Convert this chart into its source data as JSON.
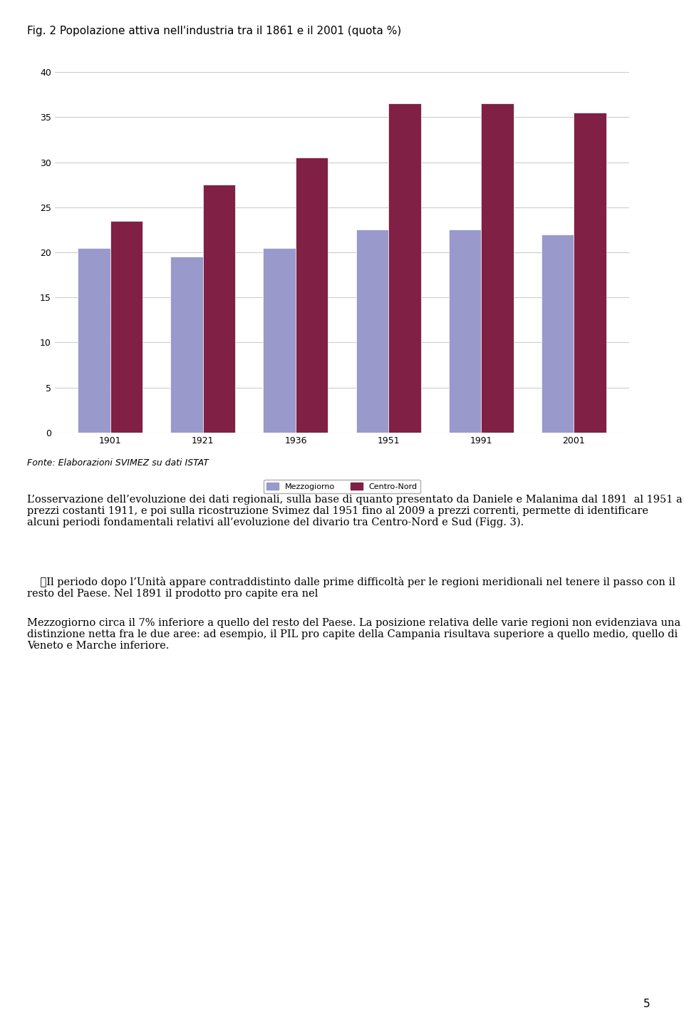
{
  "title": "Fig. 2 Popolazione attiva nell'industria tra il 1861 e il 2001 (quota %)",
  "years": [
    "1901",
    "1921",
    "1936",
    "1951",
    "1991",
    "2001"
  ],
  "mezzogiorno": [
    20.5,
    19.5,
    20.5,
    22.5,
    22.5,
    22.0
  ],
  "centro_nord": [
    23.5,
    27.5,
    30.5,
    36.5,
    36.5,
    35.5
  ],
  "mezzogiorno_color": "#9999cc",
  "centro_nord_color": "#7f2044",
  "ylim": [
    0,
    40
  ],
  "yticks": [
    0,
    5,
    10,
    15,
    20,
    25,
    30,
    35,
    40
  ],
  "legend_mezzogiorno": "Mezzogiorno",
  "legend_centro_nord": "Centro-Nord",
  "fonte": "Fonte: Elaborazioni SVIMEZ su dati ISTAT",
  "body_text": [
    "L’osservazione dell’evoluzione dei dati regionali, sulla base di quanto presentato da Daniele",
    "e Malanima dal 1891  al 1951 a prezzi costanti 1911, e poi sulla ricostruzione Svimez dal 1951 fino",
    "al 2009 a prezzi correnti, permette di identificare alcuni periodi fondamentali relativi all’evoluzione",
    "del divario tra Centro-Nord e Sud (Figg. 3).",
    "",
    "\tIl periodo dopo l’Unità appare contraddistinto dalle prime difficoltà per le regioni",
    "meridionali nel tenere il passo con il resto del Paese. Nel 1891 il prodotto pro capite era nel",
    "Mezzogiorno circa il 7% inferiore a quello del resto del Paese. La posizione relativa delle varie",
    "regioni non evidenziava una distinzione netta fra le due aree: ad esempio, il PIL pro capite della",
    "Campania risultava superiore a quello medio, quello di Veneto e Marche inferiore."
  ],
  "page_number": "5",
  "bar_width": 0.35,
  "background_color": "#ffffff",
  "grid_color": "#cccccc",
  "chart_bg": "#ffffff"
}
